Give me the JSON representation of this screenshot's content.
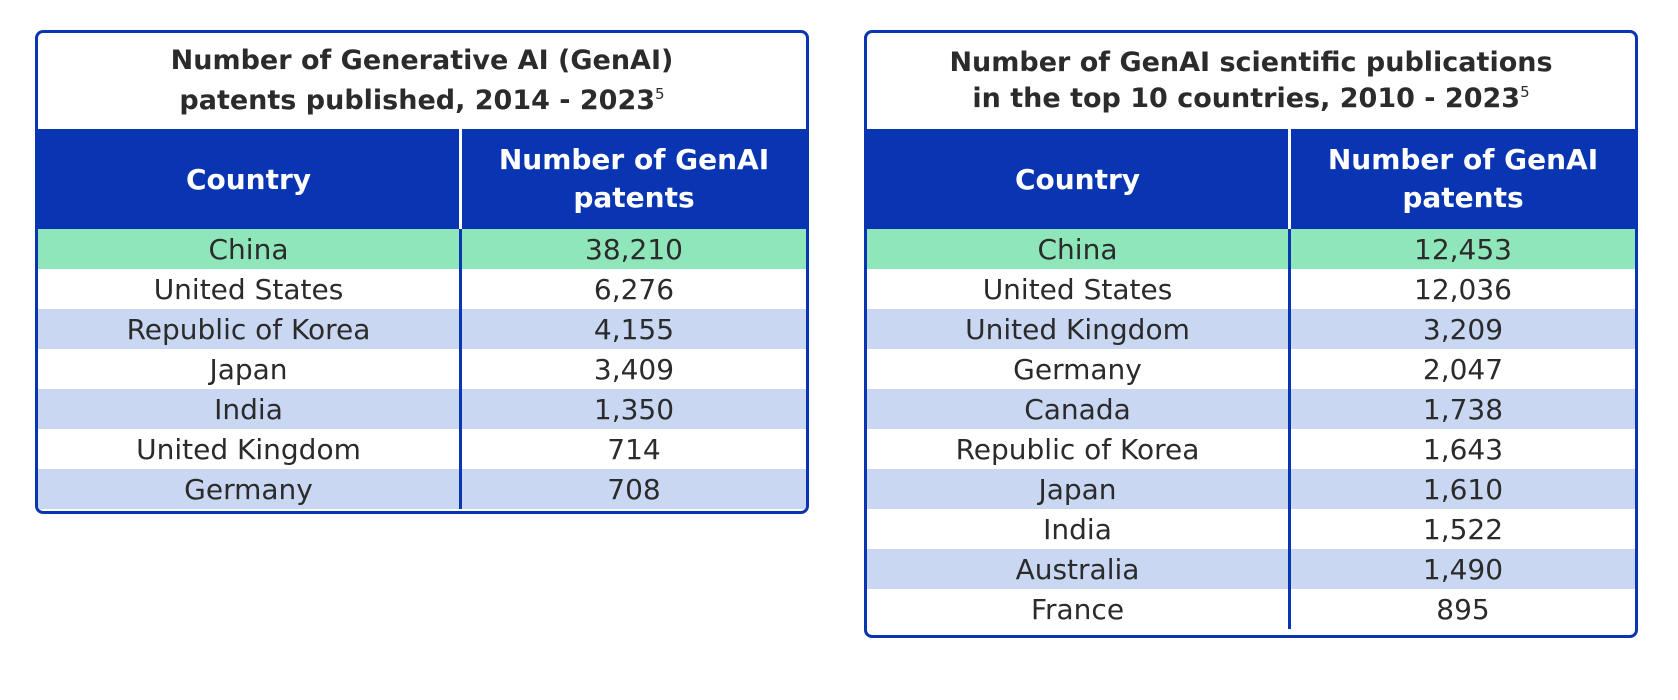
{
  "chart_data": [
    {
      "type": "table",
      "title": "Number of Generative AI (GenAI) patents published, 2014 - 2023",
      "title_footnote": "5",
      "columns": [
        "Country",
        "Number of GenAI patents"
      ],
      "rows": [
        {
          "country": "China",
          "value": "38,210"
        },
        {
          "country": "United States",
          "value": "6,276"
        },
        {
          "country": "Republic of Korea",
          "value": "4,155"
        },
        {
          "country": "Japan",
          "value": "3,409"
        },
        {
          "country": "India",
          "value": "1,350"
        },
        {
          "country": "United Kingdom",
          "value": "714"
        },
        {
          "country": "Germany",
          "value": "708"
        }
      ],
      "values": [
        38210,
        6276,
        4155,
        3409,
        1350,
        714,
        708
      ]
    },
    {
      "type": "table",
      "title": "Number of GenAI scientific publications in the top 10 countries, 2010 - 2023",
      "title_footnote": "5",
      "columns": [
        "Country",
        "Number of GenAI patents"
      ],
      "rows": [
        {
          "country": "China",
          "value": "12,453"
        },
        {
          "country": "United States",
          "value": "12,036"
        },
        {
          "country": "United Kingdom",
          "value": "3,209"
        },
        {
          "country": "Germany",
          "value": "2,047"
        },
        {
          "country": "Canada",
          "value": "1,738"
        },
        {
          "country": "Republic of Korea",
          "value": "1,643"
        },
        {
          "country": "Japan",
          "value": "1,610"
        },
        {
          "country": "India",
          "value": "1,522"
        },
        {
          "country": "Australia",
          "value": "1,490"
        },
        {
          "country": "France",
          "value": "895"
        }
      ],
      "values": [
        12453,
        12036,
        3209,
        2047,
        1738,
        1643,
        1610,
        1522,
        1490,
        895
      ]
    }
  ],
  "colors": {
    "header": "#0a35b2",
    "border": "#0a35b2",
    "highlight_row": "#8fe6bb",
    "stripe_row": "#c9d7f2",
    "plain_row": "#ffffff"
  }
}
